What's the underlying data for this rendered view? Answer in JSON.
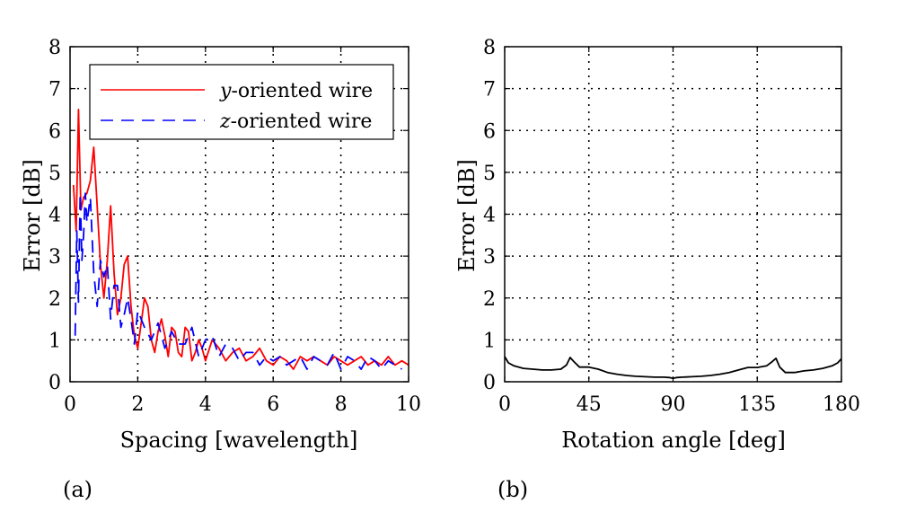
{
  "chart_data": [
    {
      "panel_label": "(a)",
      "type": "line",
      "xlabel": "Spacing [wavelength]",
      "ylabel": "Error [dB]",
      "xlim": [
        0,
        10
      ],
      "ylim": [
        0,
        8
      ],
      "xticks": [
        "0",
        "2",
        "4",
        "6",
        "8",
        "10"
      ],
      "yticks": [
        "0",
        "1",
        "2",
        "3",
        "4",
        "5",
        "6",
        "7",
        "8"
      ],
      "grid": "dotted",
      "legend_position": "top-right",
      "series": [
        {
          "name": "y-oriented wire",
          "legend_italic": "y",
          "legend_rest": "-oriented wire",
          "color": "#ff0000",
          "style": "solid",
          "x": [
            0.1,
            0.18,
            0.25,
            0.32,
            0.4,
            0.5,
            0.6,
            0.7,
            0.8,
            0.9,
            1.0,
            1.1,
            1.2,
            1.3,
            1.4,
            1.5,
            1.6,
            1.7,
            1.8,
            1.9,
            2.0,
            2.1,
            2.2,
            2.3,
            2.4,
            2.5,
            2.6,
            2.7,
            2.8,
            2.9,
            3.0,
            3.1,
            3.2,
            3.3,
            3.4,
            3.5,
            3.6,
            3.7,
            3.8,
            3.9,
            4.0,
            4.2,
            4.4,
            4.6,
            4.8,
            5.0,
            5.2,
            5.4,
            5.6,
            5.8,
            6.0,
            6.2,
            6.4,
            6.6,
            6.8,
            7.0,
            7.2,
            7.4,
            7.6,
            7.8,
            8.0,
            8.2,
            8.4,
            8.6,
            8.8,
            9.0,
            9.2,
            9.4,
            9.6,
            9.8,
            10.0
          ],
          "y": [
            4.7,
            3.6,
            6.5,
            4.1,
            4.4,
            4.5,
            4.8,
            5.6,
            4.2,
            2.8,
            2.0,
            2.9,
            4.2,
            2.6,
            1.6,
            2.0,
            2.8,
            3.0,
            1.8,
            1.1,
            0.8,
            1.4,
            2.0,
            1.8,
            1.0,
            0.7,
            1.2,
            1.5,
            1.1,
            0.6,
            1.3,
            1.2,
            0.7,
            0.6,
            1.3,
            1.2,
            0.5,
            0.7,
            1.0,
            0.8,
            0.5,
            1.0,
            0.8,
            0.5,
            0.7,
            0.8,
            0.5,
            0.6,
            0.8,
            0.5,
            0.4,
            0.6,
            0.5,
            0.3,
            0.6,
            0.5,
            0.6,
            0.5,
            0.4,
            0.6,
            0.5,
            0.4,
            0.5,
            0.6,
            0.4,
            0.5,
            0.4,
            0.6,
            0.4,
            0.5,
            0.4
          ]
        },
        {
          "name": "z-oriented wire",
          "legend_italic": "z",
          "legend_rest": "-oriented wire",
          "color": "#0000ff",
          "style": "dashed",
          "x": [
            0.15,
            0.2,
            0.25,
            0.3,
            0.35,
            0.4,
            0.45,
            0.5,
            0.55,
            0.6,
            0.7,
            0.8,
            0.9,
            1.0,
            1.1,
            1.2,
            1.3,
            1.4,
            1.5,
            1.6,
            1.7,
            1.8,
            1.9,
            2.0,
            2.2,
            2.4,
            2.6,
            2.8,
            3.0,
            3.2,
            3.4,
            3.6,
            3.8,
            4.0,
            4.2,
            4.4,
            4.6,
            4.8,
            5.0,
            5.2,
            5.4,
            5.6,
            5.8,
            6.0,
            6.2,
            6.4,
            6.6,
            6.8,
            7.0,
            7.2,
            7.4,
            7.6,
            7.8,
            8.0,
            8.2,
            8.4,
            8.6,
            8.8,
            9.0,
            9.2,
            9.4,
            9.6,
            9.8
          ],
          "y": [
            1.1,
            3.6,
            1.9,
            4.5,
            2.9,
            3.5,
            4.5,
            3.8,
            4.1,
            4.4,
            2.6,
            1.8,
            2.9,
            2.5,
            2.8,
            1.5,
            2.3,
            2.3,
            1.3,
            1.6,
            2.0,
            1.5,
            0.9,
            1.7,
            1.3,
            1.0,
            1.4,
            0.8,
            1.2,
            0.9,
            0.9,
            1.3,
            0.6,
            1.0,
            1.1,
            0.6,
            0.9,
            0.8,
            0.5,
            0.7,
            0.7,
            0.4,
            0.6,
            0.5,
            0.6,
            0.4,
            0.5,
            0.6,
            0.3,
            0.6,
            0.5,
            0.4,
            0.7,
            0.3,
            0.6,
            0.5,
            0.3,
            0.6,
            0.5,
            0.3,
            0.5,
            0.4,
            0.3
          ]
        }
      ]
    },
    {
      "panel_label": "(b)",
      "type": "line",
      "xlabel": "Rotation angle [deg]",
      "ylabel": "Error [dB]",
      "xlim": [
        0,
        180
      ],
      "ylim": [
        0,
        8
      ],
      "xticks": [
        "0",
        "45",
        "90",
        "135",
        "180"
      ],
      "yticks": [
        "0",
        "1",
        "2",
        "3",
        "4",
        "5",
        "6",
        "7",
        "8"
      ],
      "grid": "dotted",
      "series": [
        {
          "color": "#000000",
          "style": "solid",
          "x": [
            0,
            2,
            5,
            10,
            15,
            20,
            25,
            30,
            33,
            35,
            37,
            40,
            45,
            50,
            55,
            60,
            65,
            70,
            75,
            80,
            85,
            88,
            90,
            92,
            95,
            100,
            105,
            110,
            115,
            120,
            125,
            130,
            135,
            140,
            143,
            145,
            147,
            150,
            155,
            160,
            165,
            170,
            175,
            178,
            180
          ],
          "y": [
            0.6,
            0.45,
            0.38,
            0.32,
            0.3,
            0.28,
            0.28,
            0.3,
            0.4,
            0.58,
            0.48,
            0.35,
            0.35,
            0.3,
            0.22,
            0.18,
            0.15,
            0.13,
            0.12,
            0.11,
            0.11,
            0.1,
            0.08,
            0.1,
            0.11,
            0.12,
            0.13,
            0.15,
            0.18,
            0.22,
            0.28,
            0.34,
            0.34,
            0.38,
            0.48,
            0.56,
            0.35,
            0.22,
            0.22,
            0.26,
            0.28,
            0.32,
            0.38,
            0.45,
            0.55
          ]
        }
      ]
    }
  ]
}
